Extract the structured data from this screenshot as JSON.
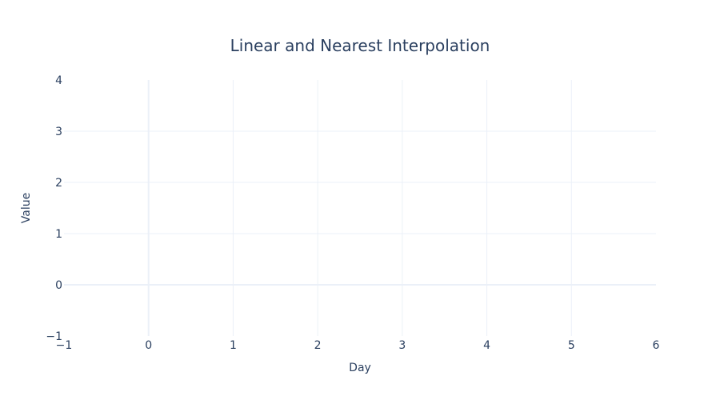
{
  "chart_data": {
    "type": "line",
    "title": "Linear and Nearest Interpolation",
    "xlabel": "Day",
    "ylabel": "Value",
    "xlim": [
      -1,
      6
    ],
    "ylim": [
      -1,
      4
    ],
    "x_ticks": [
      -1,
      0,
      1,
      2,
      3,
      4,
      5,
      6
    ],
    "y_ticks": [
      -1,
      0,
      1,
      2,
      3,
      4
    ],
    "x_tick_labels": [
      "−1",
      "0",
      "1",
      "2",
      "3",
      "4",
      "5",
      "6"
    ],
    "y_tick_labels": [
      "−1",
      "0",
      "1",
      "2",
      "3",
      "4"
    ],
    "grid": true,
    "legend": "none",
    "series": [],
    "colors": {
      "text": "#2a3f5f",
      "grid": "#ebf0f8",
      "background": "#ffffff"
    }
  }
}
